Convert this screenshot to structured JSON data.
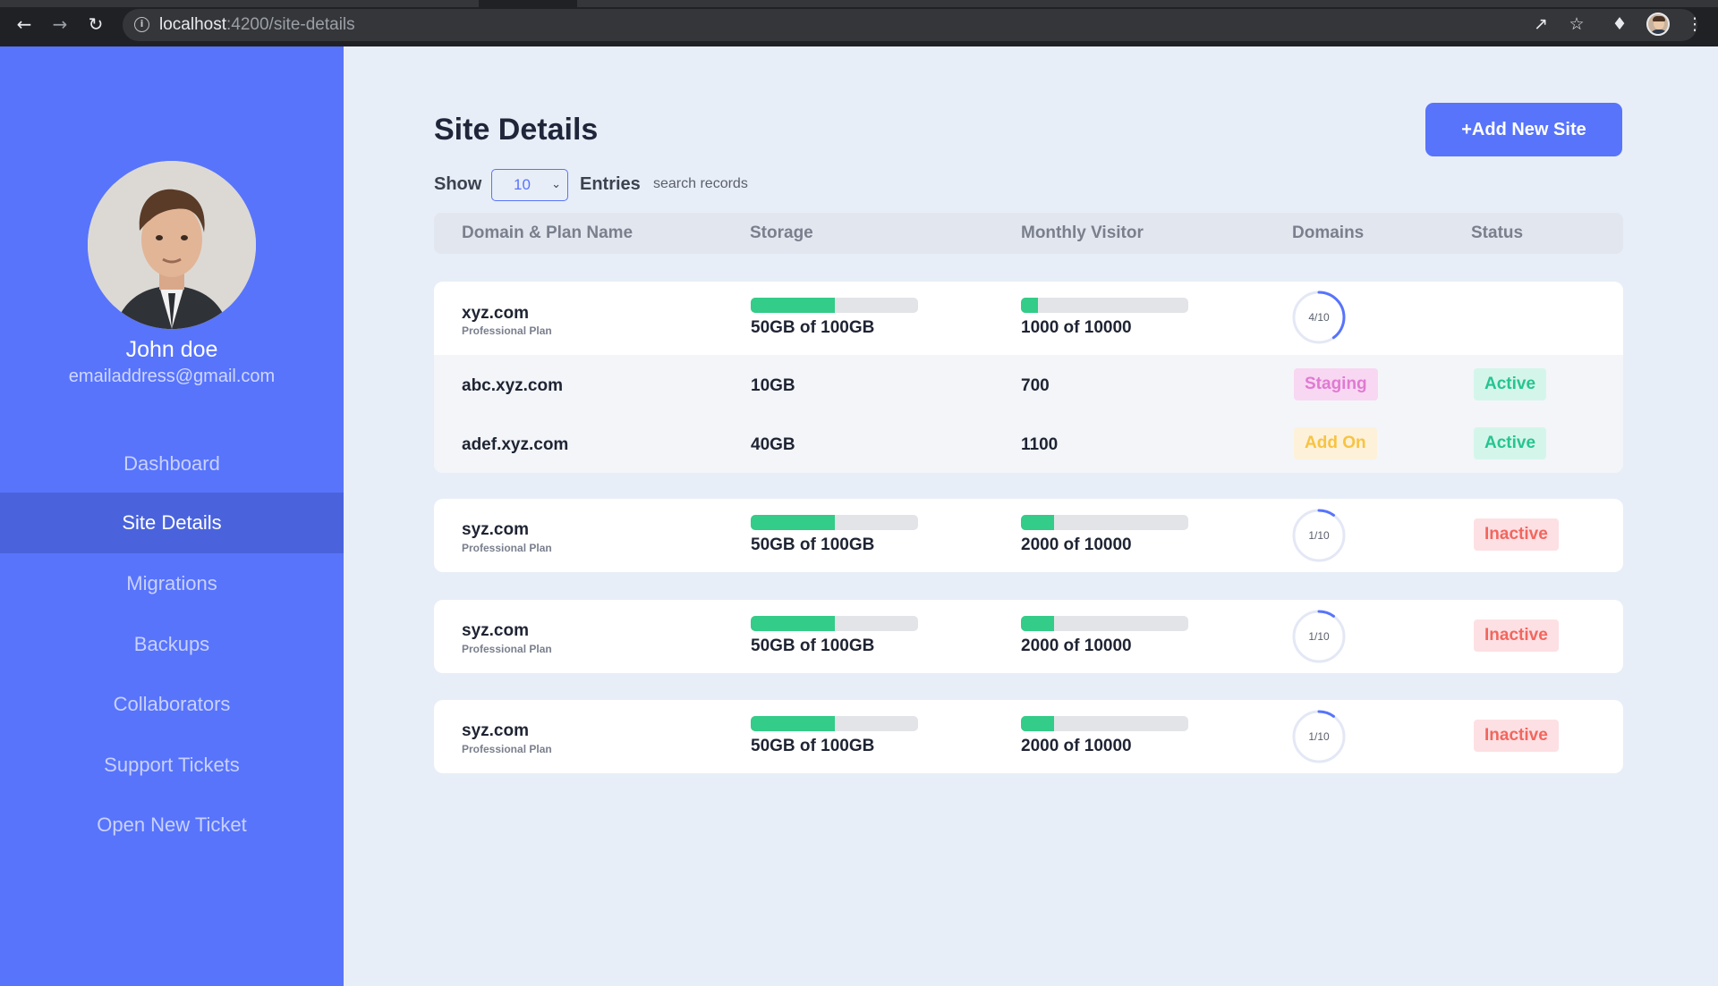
{
  "browser": {
    "url_host": "localhost",
    "url_path": ":4200/site-details",
    "icons": [
      "back-icon",
      "forward-icon",
      "reload-icon",
      "site-info-icon",
      "share-icon",
      "bookmark-star-icon",
      "extensions-puzzle-icon",
      "profile-avatar",
      "menu-kebab-icon"
    ]
  },
  "sidebar": {
    "user_name": "John doe",
    "user_email": "emailaddress@gmail.com",
    "items": [
      {
        "label": "Dashboard",
        "active": false
      },
      {
        "label": "Site Details",
        "active": true
      },
      {
        "label": "Migrations",
        "active": false
      },
      {
        "label": "Backups",
        "active": false
      },
      {
        "label": "Collaborators",
        "active": false
      },
      {
        "label": "Support Tickets",
        "active": false
      },
      {
        "label": "Open New Ticket",
        "active": false
      }
    ],
    "background": "#5874fb",
    "active_background": "#4a63dc"
  },
  "main": {
    "title": "Site Details",
    "add_button_label": "+Add New Site",
    "show_label": "Show",
    "entries_value": "10",
    "entries_label": "Entries",
    "search_placeholder": "search records",
    "columns": [
      "Domain & Plan Name",
      "Storage",
      "Monthly Visitor",
      "Domains",
      "Status"
    ]
  },
  "sites": [
    {
      "domain": "xyz.com",
      "plan": "Professional Plan",
      "storage_text": "50GB of 100GB",
      "storage_fraction": 0.5,
      "visitors_text": "1000 of 10000",
      "visitors_fraction": 0.1,
      "domains_text": "4/10",
      "domains_fraction": 0.4,
      "status": "",
      "subdomains": [
        {
          "domain": "abc.xyz.com",
          "storage": "10GB",
          "visitors": "700",
          "type": "Staging",
          "status": "Active"
        },
        {
          "domain": "adef.xyz.com",
          "storage": "40GB",
          "visitors": "1100",
          "type": "Add On",
          "status": "Active"
        }
      ]
    },
    {
      "domain": "syz.com",
      "plan": "Professional Plan",
      "storage_text": "50GB of 100GB",
      "storage_fraction": 0.5,
      "visitors_text": "2000 of 10000",
      "visitors_fraction": 0.2,
      "domains_text": "1/10",
      "domains_fraction": 0.1,
      "status": "Inactive"
    },
    {
      "domain": "syz.com",
      "plan": "Professional Plan",
      "storage_text": "50GB of 100GB",
      "storage_fraction": 0.5,
      "visitors_text": "2000 of 10000",
      "visitors_fraction": 0.2,
      "domains_text": "1/10",
      "domains_fraction": 0.1,
      "status": "Inactive"
    },
    {
      "domain": "syz.com",
      "plan": "Professional Plan",
      "storage_text": "50GB of 100GB",
      "storage_fraction": 0.5,
      "visitors_text": "2000 of 10000",
      "visitors_fraction": 0.2,
      "domains_text": "1/10",
      "domains_fraction": 0.1,
      "status": "Inactive"
    }
  ],
  "colors": {
    "accent": "#5874fb",
    "progress": "#33cc88",
    "active": "#26c491",
    "inactive": "#f2665e",
    "staging": "#e07ad2",
    "addon": "#f7c343"
  }
}
